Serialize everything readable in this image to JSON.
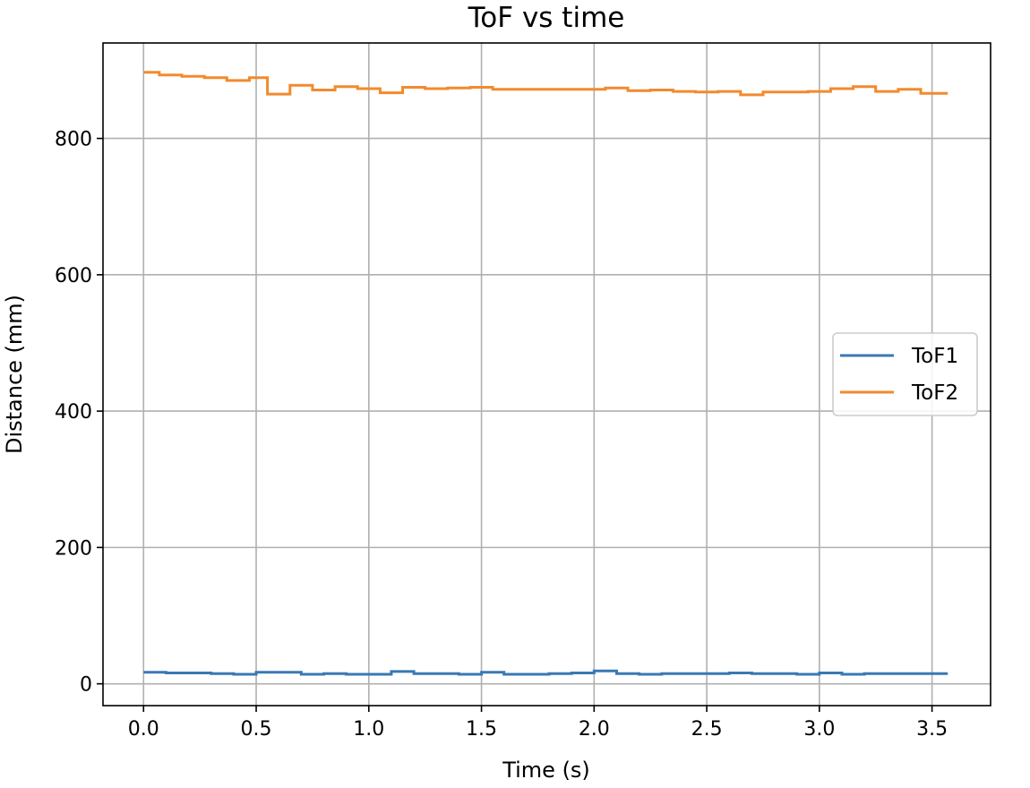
{
  "chart_data": {
    "type": "line",
    "title": "ToF vs time",
    "xlabel": "Time (s)",
    "ylabel": "Distance (mm)",
    "xlim": [
      -0.18,
      3.76
    ],
    "ylim": [
      -32,
      940
    ],
    "xticks": [
      0.0,
      0.5,
      1.0,
      1.5,
      2.0,
      2.5,
      3.0,
      3.5
    ],
    "xtick_labels": [
      "0.0",
      "0.5",
      "1.0",
      "1.5",
      "2.0",
      "2.5",
      "3.0",
      "3.5"
    ],
    "yticks": [
      0,
      200,
      400,
      600,
      800
    ],
    "ytick_labels": [
      "0",
      "200",
      "400",
      "600",
      "800"
    ],
    "grid": true,
    "legend_position": "center-right",
    "step": true,
    "series": [
      {
        "name": "ToF1",
        "color": "#3a78b4",
        "x": [
          0.0,
          0.1,
          0.2,
          0.3,
          0.4,
          0.5,
          0.6,
          0.7,
          0.8,
          0.9,
          1.0,
          1.1,
          1.2,
          1.3,
          1.4,
          1.5,
          1.6,
          1.7,
          1.8,
          1.9,
          2.0,
          2.1,
          2.2,
          2.3,
          2.4,
          2.5,
          2.6,
          2.7,
          2.8,
          2.9,
          3.0,
          3.1,
          3.2,
          3.3,
          3.4,
          3.5,
          3.57
        ],
        "y": [
          17,
          16,
          16,
          15,
          14,
          17,
          17,
          14,
          15,
          14,
          14,
          18,
          15,
          15,
          14,
          17,
          14,
          14,
          15,
          16,
          19,
          15,
          14,
          15,
          15,
          15,
          16,
          15,
          15,
          14,
          16,
          14,
          15,
          15,
          15,
          15,
          15
        ]
      },
      {
        "name": "ToF2",
        "color": "#f28a2e",
        "x": [
          0.0,
          0.07,
          0.17,
          0.27,
          0.37,
          0.47,
          0.55,
          0.65,
          0.75,
          0.85,
          0.95,
          1.05,
          1.15,
          1.25,
          1.35,
          1.45,
          1.55,
          1.65,
          1.75,
          1.85,
          1.95,
          2.05,
          2.15,
          2.25,
          2.35,
          2.45,
          2.55,
          2.65,
          2.75,
          2.85,
          2.95,
          3.05,
          3.15,
          3.25,
          3.35,
          3.45,
          3.57
        ],
        "y": [
          897,
          893,
          891,
          889,
          885,
          889,
          865,
          878,
          871,
          876,
          873,
          867,
          875,
          873,
          874,
          875,
          872,
          872,
          872,
          872,
          872,
          874,
          870,
          871,
          869,
          868,
          869,
          864,
          868,
          868,
          869,
          873,
          876,
          869,
          872,
          866,
          866
        ]
      }
    ]
  }
}
